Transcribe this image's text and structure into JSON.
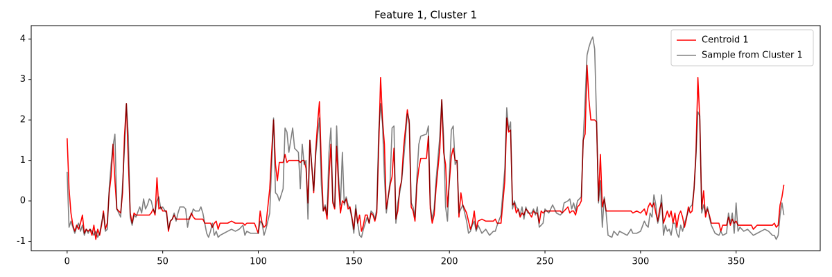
{
  "chart_data": {
    "type": "line",
    "title": "Feature 1, Cluster 1",
    "x": [
      0,
      1,
      2,
      3,
      4,
      5,
      6,
      7,
      8,
      9,
      10,
      11,
      12,
      13,
      14,
      15,
      16,
      17,
      18,
      19,
      20,
      21,
      22,
      23,
      24,
      25,
      26,
      27,
      28,
      29,
      30,
      31,
      32,
      33,
      34,
      35,
      36,
      38,
      39,
      40,
      41,
      42,
      43,
      44,
      45,
      46,
      47,
      48,
      49,
      50,
      52,
      53,
      54,
      55,
      56,
      57,
      58,
      59,
      61,
      62,
      63,
      64,
      65,
      66,
      67,
      69,
      70,
      71,
      72,
      73,
      74,
      75,
      76,
      77,
      78,
      79,
      80,
      82,
      84,
      86,
      88,
      90,
      92,
      93,
      94,
      96,
      98,
      100,
      101,
      102,
      103,
      104,
      106,
      107,
      108,
      109,
      110,
      111,
      113,
      114,
      115,
      116,
      117,
      118,
      119,
      121,
      122,
      123,
      124,
      125,
      126,
      127,
      129,
      130,
      131,
      132,
      133,
      134,
      135,
      136,
      137,
      138,
      139,
      140,
      141,
      142,
      143,
      144,
      145,
      146,
      147,
      148,
      149,
      150,
      151,
      152,
      153,
      154,
      155,
      156,
      157,
      158,
      159,
      160,
      161,
      162,
      163,
      164,
      165,
      166,
      167,
      169,
      170,
      171,
      172,
      173,
      174,
      175,
      176,
      178,
      179,
      180,
      181,
      182,
      183,
      184,
      185,
      188,
      189,
      190,
      191,
      192,
      193,
      195,
      196,
      197,
      198,
      199,
      201,
      202,
      203,
      204,
      205,
      206,
      207,
      209,
      210,
      211,
      212,
      213,
      214,
      215,
      217,
      219,
      221,
      223,
      224,
      225,
      227,
      229,
      230,
      231,
      232,
      233,
      234,
      235,
      236,
      237,
      238,
      239,
      240,
      241,
      243,
      244,
      245,
      246,
      247,
      248,
      249,
      250,
      252,
      254,
      256,
      258,
      259,
      260,
      262,
      263,
      264,
      265,
      266,
      267,
      268,
      269,
      270,
      271,
      272,
      273,
      274,
      275,
      276,
      277,
      278,
      279,
      280,
      281,
      282,
      283,
      285,
      286,
      288,
      289,
      291,
      293,
      295,
      296,
      298,
      300,
      302,
      303,
      304,
      305,
      306,
      307,
      308,
      309,
      310,
      311,
      312,
      313,
      314,
      315,
      316,
      317,
      318,
      319,
      320,
      321,
      322,
      323,
      324,
      325,
      326,
      327,
      328,
      329,
      330,
      331,
      332,
      333,
      334,
      335,
      336,
      337,
      339,
      341,
      342,
      343,
      345,
      346,
      347,
      348,
      349,
      350,
      351,
      352,
      354,
      356,
      358,
      359,
      361,
      363,
      365,
      367,
      369,
      370,
      371,
      372,
      373,
      374,
      375
    ],
    "series": [
      {
        "name": "Centroid 1",
        "color": "#ff0000",
        "values": [
          1.55,
          0.3,
          -0.3,
          -0.6,
          -0.75,
          -0.6,
          -0.7,
          -0.55,
          -0.35,
          -0.8,
          -0.7,
          -0.75,
          -0.7,
          -0.85,
          -0.6,
          -0.95,
          -0.7,
          -0.85,
          -0.6,
          -0.25,
          -0.7,
          -0.55,
          0.2,
          0.6,
          1.4,
          0.5,
          -0.2,
          -0.25,
          -0.3,
          0.2,
          1.6,
          2.4,
          1.0,
          -0.3,
          -0.55,
          -0.3,
          -0.35,
          -0.35,
          -0.35,
          -0.35,
          -0.35,
          -0.35,
          -0.35,
          -0.3,
          -0.2,
          -0.35,
          0.57,
          -0.2,
          -0.15,
          -0.25,
          -0.25,
          -0.75,
          -0.5,
          -0.45,
          -0.35,
          -0.45,
          -0.45,
          -0.45,
          -0.45,
          -0.45,
          -0.45,
          -0.45,
          -0.3,
          -0.4,
          -0.45,
          -0.45,
          -0.45,
          -0.45,
          -0.55,
          -0.55,
          -0.55,
          -0.55,
          -0.65,
          -0.55,
          -0.5,
          -0.7,
          -0.55,
          -0.55,
          -0.55,
          -0.5,
          -0.55,
          -0.55,
          -0.55,
          -0.6,
          -0.55,
          -0.55,
          -0.55,
          -0.8,
          -0.25,
          -0.55,
          -0.65,
          -0.6,
          0.3,
          1.2,
          2.0,
          0.9,
          0.5,
          0.95,
          0.95,
          1.15,
          0.95,
          1.0,
          1.0,
          1.0,
          1.0,
          1.0,
          0.95,
          1.0,
          1.0,
          0.8,
          -0.05,
          1.5,
          0.2,
          1.2,
          1.9,
          2.45,
          0.9,
          -0.25,
          -0.15,
          -0.45,
          0.6,
          1.4,
          -0.05,
          -0.2,
          1.35,
          0.4,
          -0.3,
          0.0,
          -0.05,
          0.05,
          -0.2,
          -0.15,
          -0.4,
          -0.7,
          -0.2,
          -0.55,
          -0.35,
          -0.75,
          -0.6,
          -0.35,
          -0.35,
          -0.55,
          -0.3,
          -0.35,
          -0.5,
          -0.3,
          1.3,
          3.05,
          2.0,
          1.4,
          -0.2,
          0.4,
          0.6,
          1.3,
          -0.45,
          -0.25,
          0.3,
          0.5,
          1.3,
          2.25,
          1.9,
          -0.15,
          -0.25,
          -0.5,
          0.4,
          0.8,
          1.05,
          1.05,
          1.6,
          -0.2,
          -0.55,
          -0.35,
          0.3,
          1.3,
          2.5,
          1.2,
          0.9,
          -0.15,
          1.1,
          1.3,
          1.0,
          1.0,
          -0.4,
          0.2,
          -0.1,
          -0.3,
          -0.5,
          -0.7,
          -0.55,
          -0.25,
          -0.7,
          -0.5,
          -0.45,
          -0.5,
          -0.5,
          -0.5,
          -0.45,
          -0.55,
          -0.55,
          0.5,
          2.05,
          1.7,
          1.75,
          -0.1,
          -0.05,
          -0.3,
          -0.2,
          -0.4,
          -0.3,
          -0.35,
          -0.2,
          -0.25,
          -0.4,
          -0.25,
          -0.3,
          -0.3,
          -0.55,
          -0.25,
          -0.3,
          -0.25,
          -0.25,
          -0.25,
          -0.25,
          -0.25,
          -0.3,
          -0.25,
          -0.15,
          -0.3,
          -0.25,
          -0.25,
          -0.35,
          -0.15,
          -0.1,
          0.0,
          1.5,
          1.65,
          3.35,
          2.5,
          2.0,
          2.0,
          2.0,
          1.95,
          0.0,
          1.15,
          -0.15,
          0.05,
          -0.25,
          -0.25,
          -0.25,
          -0.25,
          -0.25,
          -0.25,
          -0.25,
          -0.25,
          -0.25,
          -0.3,
          -0.25,
          -0.3,
          -0.2,
          -0.35,
          -0.15,
          -0.05,
          -0.15,
          -0.05,
          -0.3,
          -0.5,
          -0.2,
          -0.05,
          -0.55,
          -0.4,
          -0.25,
          -0.4,
          -0.25,
          -0.55,
          -0.3,
          -0.65,
          -0.35,
          -0.25,
          -0.4,
          -0.65,
          -0.45,
          -0.15,
          -0.3,
          -0.25,
          0.3,
          1.2,
          3.05,
          2.0,
          -0.2,
          0.25,
          -0.4,
          -0.2,
          -0.35,
          -0.55,
          -0.55,
          -0.55,
          -0.75,
          -0.6,
          -0.6,
          -0.4,
          -0.6,
          -0.45,
          -0.55,
          -0.5,
          -0.6,
          -0.6,
          -0.6,
          -0.6,
          -0.6,
          -0.7,
          -0.6,
          -0.6,
          -0.6,
          -0.6,
          -0.6,
          -0.55,
          -0.65,
          -0.6,
          -0.1,
          0.1,
          0.4
        ]
      },
      {
        "name": "Sample from Cluster 1",
        "color": "#808080",
        "values": [
          0.72,
          -0.65,
          -0.5,
          -0.65,
          -0.8,
          -0.65,
          -0.55,
          -0.75,
          -0.6,
          -0.85,
          -0.7,
          -0.8,
          -0.7,
          -0.75,
          -0.85,
          -0.75,
          -0.9,
          -0.8,
          -0.55,
          -0.3,
          -0.75,
          -0.7,
          0.3,
          0.9,
          1.35,
          1.65,
          -0.2,
          -0.3,
          -0.4,
          0.4,
          1.3,
          2.4,
          1.6,
          -0.4,
          -0.6,
          -0.35,
          -0.4,
          -0.15,
          -0.3,
          0.05,
          -0.2,
          -0.1,
          0.05,
          0.0,
          -0.2,
          -0.3,
          0.0,
          0.1,
          -0.2,
          -0.15,
          -0.3,
          -0.7,
          -0.5,
          -0.45,
          -0.3,
          -0.5,
          -0.3,
          -0.15,
          -0.15,
          -0.2,
          -0.65,
          -0.4,
          -0.35,
          -0.2,
          -0.25,
          -0.25,
          -0.15,
          -0.3,
          -0.55,
          -0.8,
          -0.9,
          -0.75,
          -0.55,
          -0.85,
          -0.75,
          -0.9,
          -0.85,
          -0.8,
          -0.75,
          -0.7,
          -0.75,
          -0.7,
          -0.6,
          -0.85,
          -0.75,
          -0.8,
          -0.8,
          -0.8,
          -0.5,
          -0.55,
          -0.85,
          -0.7,
          -0.3,
          0.9,
          2.05,
          0.2,
          0.15,
          0.0,
          0.3,
          1.8,
          1.7,
          1.2,
          1.5,
          1.8,
          1.3,
          1.2,
          0.3,
          1.4,
          0.9,
          1.0,
          -0.45,
          1.5,
          0.25,
          1.1,
          1.6,
          2.05,
          0.4,
          -0.25,
          -0.1,
          -0.35,
          1.2,
          1.8,
          0.0,
          -0.15,
          1.85,
          0.6,
          -0.1,
          1.2,
          -0.1,
          0.1,
          -0.1,
          -0.2,
          -0.45,
          -0.8,
          -0.1,
          -0.55,
          -0.85,
          -0.9,
          -0.7,
          -0.55,
          -0.4,
          -0.55,
          -0.25,
          -0.3,
          -0.45,
          -0.2,
          1.7,
          2.4,
          1.9,
          0.6,
          -0.3,
          0.5,
          1.8,
          1.85,
          -0.55,
          -0.05,
          0.2,
          0.5,
          1.0,
          2.15,
          2.0,
          -0.05,
          -0.15,
          -0.4,
          0.6,
          1.4,
          1.6,
          1.65,
          1.85,
          -0.1,
          -0.45,
          -0.2,
          0.5,
          1.6,
          2.5,
          1.55,
          -0.15,
          -0.5,
          1.75,
          1.85,
          0.9,
          1.0,
          -0.3,
          -0.2,
          -0.1,
          -0.5,
          -0.8,
          -0.75,
          -0.6,
          -0.5,
          -0.75,
          -0.6,
          -0.8,
          -0.7,
          -0.85,
          -0.75,
          -0.75,
          -0.6,
          -0.35,
          0.8,
          2.3,
          1.75,
          1.95,
          -0.2,
          0.0,
          -0.15,
          -0.2,
          -0.35,
          -0.15,
          -0.45,
          -0.15,
          -0.3,
          -0.3,
          -0.2,
          -0.35,
          -0.15,
          -0.65,
          -0.6,
          -0.55,
          -0.2,
          -0.3,
          -0.1,
          -0.3,
          -0.35,
          -0.3,
          -0.05,
          0.0,
          0.05,
          -0.2,
          -0.05,
          -0.25,
          0.0,
          0.05,
          0.1,
          1.5,
          2.5,
          3.6,
          3.8,
          3.95,
          4.05,
          3.75,
          2.0,
          -0.05,
          0.5,
          -0.65,
          0.1,
          -0.3,
          -0.85,
          -0.9,
          -0.75,
          -0.85,
          -0.75,
          -0.8,
          -0.85,
          -0.7,
          -0.8,
          -0.8,
          -0.75,
          -0.5,
          -0.6,
          -0.65,
          -0.3,
          -0.4,
          0.15,
          -0.1,
          -0.55,
          -0.35,
          0.15,
          -0.85,
          -0.6,
          -0.75,
          -0.7,
          -0.85,
          -0.55,
          -0.55,
          -0.8,
          -0.9,
          -0.6,
          -0.75,
          -0.55,
          -0.4,
          -0.25,
          -0.15,
          -0.1,
          0.3,
          1.1,
          2.2,
          2.1,
          -0.3,
          -0.1,
          -0.3,
          -0.15,
          -0.4,
          -0.6,
          -0.8,
          -0.85,
          -0.75,
          -0.85,
          -0.8,
          -0.3,
          -0.55,
          -0.3,
          -0.8,
          -0.05,
          -0.75,
          -0.65,
          -0.75,
          -0.7,
          -0.8,
          -0.85,
          -0.8,
          -0.75,
          -0.7,
          -0.75,
          -0.85,
          -0.85,
          -0.95,
          -0.85,
          -0.35,
          -0.05,
          -0.35
        ]
      }
    ],
    "xlim": [
      -18.8,
      394
    ],
    "ylim": [
      -1.23,
      4.33
    ],
    "xticks": [
      0,
      50,
      100,
      150,
      200,
      250,
      300,
      350
    ],
    "yticks": [
      -1,
      0,
      1,
      2,
      3,
      4
    ],
    "legend": "upper right",
    "grid": false
  }
}
